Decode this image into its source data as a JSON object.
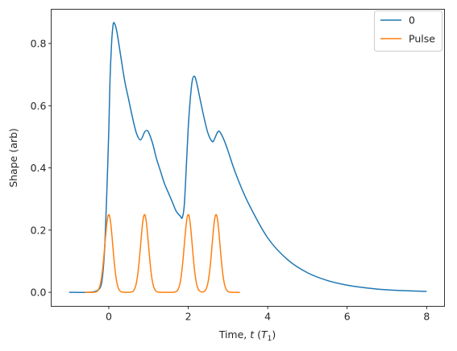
{
  "chart_data": {
    "type": "line",
    "xlabel": "Time, t (T1)",
    "xlabel_parts": {
      "prefix": "Time, ",
      "var": "t",
      "unit_open": " (",
      "unit": "T",
      "unit_sub": "1",
      "unit_close": ")"
    },
    "ylabel": "Shape (arb)",
    "xlim": [
      -1.45,
      8.45
    ],
    "ylim": [
      -0.045,
      0.91
    ],
    "xticks": [
      0,
      2,
      4,
      6,
      8
    ],
    "xtick_labels": [
      "0",
      "2",
      "4",
      "6",
      "8"
    ],
    "yticks": [
      0.0,
      0.2,
      0.4,
      0.6,
      0.8
    ],
    "ytick_labels": [
      "0.0",
      "0.2",
      "0.4",
      "0.6",
      "0.8"
    ],
    "grid": false,
    "legend_position": "top-right",
    "series": [
      {
        "name": "0",
        "color": "#1f77b4",
        "x": [
          -1.0,
          -0.5,
          -0.3,
          -0.2,
          -0.15,
          -0.1,
          -0.05,
          0.0,
          0.03,
          0.07,
          0.1,
          0.13,
          0.2,
          0.3,
          0.4,
          0.5,
          0.6,
          0.7,
          0.8,
          0.9,
          0.95,
          1.0,
          1.1,
          1.2,
          1.3,
          1.4,
          1.5,
          1.6,
          1.7,
          1.8,
          1.85,
          1.9,
          1.95,
          2.0,
          2.05,
          2.1,
          2.15,
          2.2,
          2.3,
          2.4,
          2.5,
          2.6,
          2.65,
          2.7,
          2.75,
          2.8,
          2.9,
          3.0,
          3.2,
          3.5,
          4.0,
          4.5,
          5.0,
          5.5,
          6.0,
          6.5,
          7.0,
          7.5,
          8.0
        ],
        "y": [
          0.0,
          0.0,
          0.005,
          0.02,
          0.06,
          0.15,
          0.32,
          0.52,
          0.68,
          0.8,
          0.85,
          0.867,
          0.84,
          0.76,
          0.68,
          0.62,
          0.56,
          0.51,
          0.49,
          0.515,
          0.52,
          0.515,
          0.48,
          0.43,
          0.39,
          0.35,
          0.32,
          0.29,
          0.26,
          0.245,
          0.24,
          0.28,
          0.4,
          0.53,
          0.62,
          0.68,
          0.695,
          0.68,
          0.62,
          0.56,
          0.51,
          0.485,
          0.49,
          0.505,
          0.517,
          0.515,
          0.49,
          0.455,
          0.38,
          0.29,
          0.175,
          0.105,
          0.063,
          0.038,
          0.023,
          0.014,
          0.008,
          0.005,
          0.003
        ]
      },
      {
        "name": "Pulse",
        "color": "#ff7f0e",
        "pulse_centers": [
          0.0,
          0.9,
          2.0,
          2.7
        ],
        "pulse_amplitude": 0.25,
        "pulse_sigma": 0.1,
        "x_range": [
          -0.6,
          3.3
        ]
      }
    ]
  }
}
